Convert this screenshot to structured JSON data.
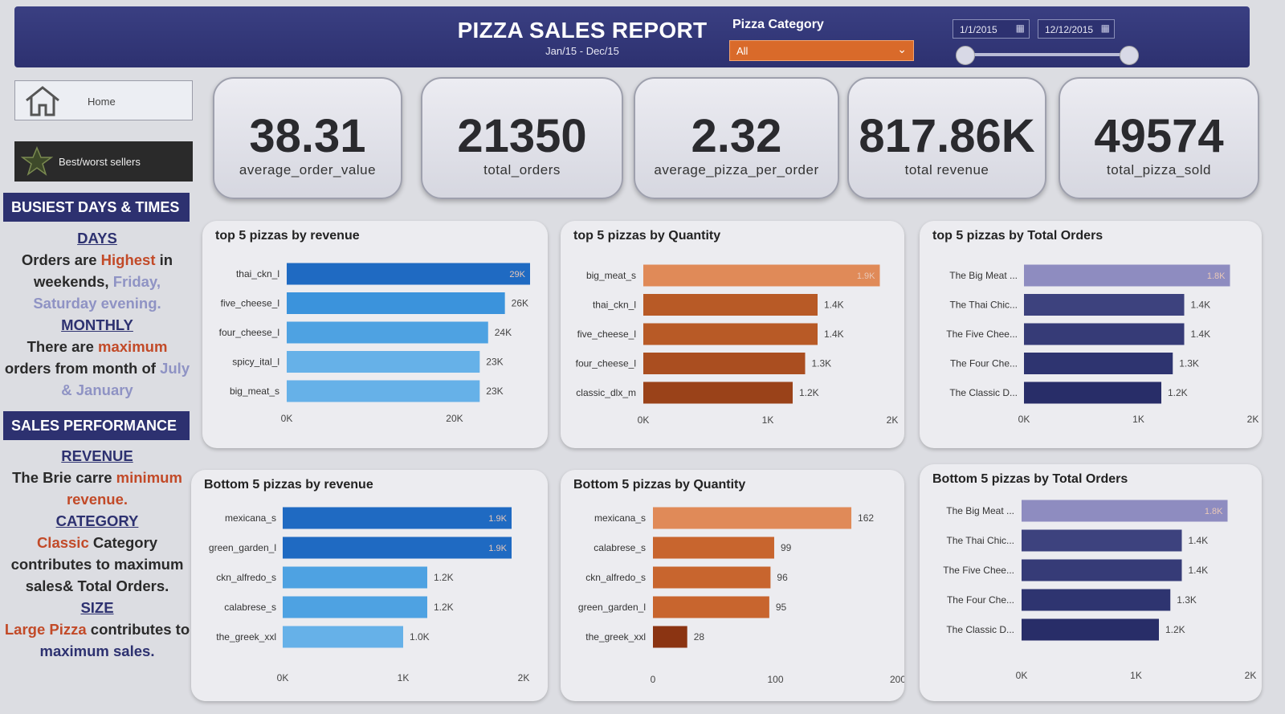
{
  "header": {
    "title": "PIZZA SALES REPORT",
    "subtitle": "Jan/15 - Dec/15",
    "category_label": "Pizza Category",
    "category_value": "All",
    "date_start": "1/1/2015",
    "date_end": "12/12/2015"
  },
  "nav": {
    "home": "Home",
    "best_worst": "Best/worst sellers"
  },
  "busiest": {
    "heading": "BUSIEST DAYS & TIMES",
    "days_title": "DAYS",
    "days_text_1": "Orders are ",
    "days_hl_1": "Highest",
    "days_text_2": " in weekends, ",
    "days_hl_2": "Friday, Saturday evening.",
    "monthly_title": "MONTHLY",
    "monthly_text_1": "There are ",
    "monthly_hl_1": "maximum",
    "monthly_text_2": " orders from month of ",
    "monthly_hl_2": "July & January"
  },
  "sales": {
    "heading": "SALES PERFORMANCE",
    "revenue_title": "REVENUE",
    "revenue_text": "The Brie carre ",
    "revenue_hl": "minimum revenue.",
    "category_title": "CATEGORY",
    "category_hl": "Classic",
    "category_text": " Category contributes to maximum sales& Total Orders.",
    "size_title": "SIZE",
    "size_hl": "Large Pizza",
    "size_text_1": " contributes to ",
    "size_hl_2": "maximum sales."
  },
  "kpis": [
    {
      "value": "38.31",
      "label": "average_order_value"
    },
    {
      "value": "21350",
      "label": "total_orders"
    },
    {
      "value": "2.32",
      "label": "average_pizza_per_order"
    },
    {
      "value": "817.86K",
      "label": "total revenue"
    },
    {
      "value": "49574",
      "label": "total_pizza_sold"
    }
  ],
  "colors": {
    "header": "#2d3170",
    "accent_orange": "#d96a2a",
    "blue_dark": "#1f6ac2",
    "blue_mid": "#3b93dc",
    "blue_light": "#66b1e8",
    "brown_dark": "#8b3412",
    "brown_mid": "#b85a26",
    "orange_light": "#e08a58",
    "navy": "#2e3470",
    "lavender": "#8e8cc0"
  },
  "chart_data": [
    {
      "type": "bar",
      "title": "top 5 pizzas by revenue",
      "categories": [
        "thai_ckn_l",
        "five_cheese_l",
        "four_cheese_l",
        "spicy_ital_l",
        "big_meat_s"
      ],
      "values": [
        29000,
        26000,
        24000,
        23000,
        23000
      ],
      "value_labels": [
        "29K",
        "26K",
        "24K",
        "23K",
        "23K"
      ],
      "ticks": [
        0,
        20000
      ],
      "tick_labels": [
        "0K",
        "20K"
      ],
      "xlim": [
        0,
        29000
      ],
      "colors": [
        "#1f6ac2",
        "#3b93dc",
        "#4ea2e2",
        "#66b1e8",
        "#66b1e8"
      ],
      "label_inside": [
        true,
        false,
        false,
        false,
        false
      ]
    },
    {
      "type": "bar",
      "title": "top 5 pizzas by Quantity",
      "categories": [
        "big_meat_s",
        "thai_ckn_l",
        "five_cheese_l",
        "four_cheese_l",
        "classic_dlx_m"
      ],
      "values": [
        1900,
        1400,
        1400,
        1300,
        1200
      ],
      "value_labels": [
        "1.9K",
        "1.4K",
        "1.4K",
        "1.3K",
        "1.2K"
      ],
      "ticks": [
        0,
        1000,
        2000
      ],
      "tick_labels": [
        "0K",
        "1K",
        "2K"
      ],
      "xlim": [
        0,
        2000
      ],
      "colors": [
        "#e08a58",
        "#b85a26",
        "#b85a26",
        "#aa4e20",
        "#9a4219"
      ],
      "label_inside": [
        true,
        false,
        false,
        false,
        false
      ]
    },
    {
      "type": "bar",
      "title": "top 5 pizzas by Total Orders",
      "categories": [
        "The Big Meat ...",
        "The Thai Chic...",
        "The Five Chee...",
        "The Four Che...",
        "The Classic D..."
      ],
      "values": [
        1800,
        1400,
        1400,
        1300,
        1200
      ],
      "value_labels": [
        "1.8K",
        "1.4K",
        "1.4K",
        "1.3K",
        "1.2K"
      ],
      "ticks": [
        0,
        1000,
        2000
      ],
      "tick_labels": [
        "0K",
        "1K",
        "2K"
      ],
      "xlim": [
        0,
        2000
      ],
      "colors": [
        "#8e8cc0",
        "#3d427e",
        "#363b77",
        "#2e3470",
        "#282d68"
      ],
      "label_inside": [
        true,
        false,
        false,
        false,
        false
      ]
    },
    {
      "type": "bar",
      "title": "Bottom 5 pizzas by revenue",
      "categories": [
        "mexicana_s",
        "green_garden_l",
        "ckn_alfredo_s",
        "calabrese_s",
        "the_greek_xxl"
      ],
      "values": [
        1900,
        1900,
        1200,
        1200,
        1000
      ],
      "value_labels": [
        "1.9K",
        "1.9K",
        "1.2K",
        "1.2K",
        "1.0K"
      ],
      "ticks": [
        0,
        1000,
        2000
      ],
      "tick_labels": [
        "0K",
        "1K",
        "2K"
      ],
      "xlim": [
        0,
        2000
      ],
      "colors": [
        "#1f6ac2",
        "#1f6ac2",
        "#4ea2e2",
        "#4ea2e2",
        "#66b1e8"
      ],
      "label_inside": [
        true,
        true,
        false,
        false,
        false
      ]
    },
    {
      "type": "bar",
      "title": "Bottom 5 pizzas by Quantity",
      "categories": [
        "mexicana_s",
        "calabrese_s",
        "ckn_alfredo_s",
        "green_garden_l",
        "the_greek_xxl"
      ],
      "values": [
        162,
        99,
        96,
        95,
        28
      ],
      "value_labels": [
        "162",
        "99",
        "96",
        "95",
        "28"
      ],
      "ticks": [
        0,
        100,
        200
      ],
      "tick_labels": [
        "0",
        "100",
        "200"
      ],
      "xlim": [
        0,
        200
      ],
      "colors": [
        "#e08a58",
        "#c8652e",
        "#c8652e",
        "#c8652e",
        "#8b3412"
      ],
      "label_inside": [
        false,
        false,
        false,
        false,
        false
      ]
    },
    {
      "type": "bar",
      "title": "Bottom 5 pizzas by Total Orders",
      "categories": [
        "The Big Meat ...",
        "The Thai Chic...",
        "The Five Chee...",
        "The Four Che...",
        "The Classic D..."
      ],
      "values": [
        1800,
        1400,
        1400,
        1300,
        1200
      ],
      "value_labels": [
        "1.8K",
        "1.4K",
        "1.4K",
        "1.3K",
        "1.2K"
      ],
      "ticks": [
        0,
        1000,
        2000
      ],
      "tick_labels": [
        "0K",
        "1K",
        "2K"
      ],
      "xlim": [
        0,
        2000
      ],
      "colors": [
        "#8e8cc0",
        "#3d427e",
        "#363b77",
        "#2e3470",
        "#282d68"
      ],
      "label_inside": [
        true,
        false,
        false,
        false,
        false
      ]
    }
  ]
}
